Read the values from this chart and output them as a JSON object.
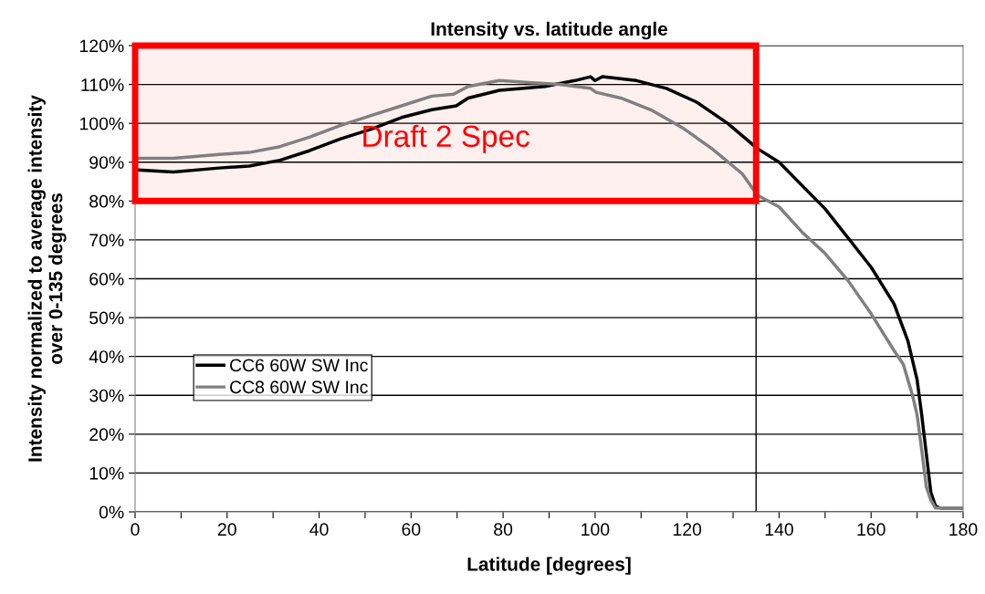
{
  "chart_data": {
    "type": "line",
    "title": "Intensity vs. latitude angle",
    "xlabel": "Latitude [degrees]",
    "ylabel": "Intensity normalized to average intensity\nover 0-135 degrees",
    "series": [
      {
        "name": "CC6 60W SW Inc",
        "color": "#000000",
        "x": [
          0.7,
          8.3,
          18.3,
          24.8,
          31.5,
          38,
          44.7,
          51.3,
          57.9,
          64.5,
          69.8,
          72.4,
          79.2,
          89.1,
          95.6,
          99,
          100,
          101.6,
          109,
          115.5,
          122,
          128.8,
          135.3,
          140,
          150,
          160,
          165,
          168,
          170,
          171,
          172,
          173,
          174,
          175,
          180
        ],
        "values": [
          88,
          87.5,
          88.5,
          89,
          90.5,
          93,
          96,
          98.5,
          101.5,
          103.5,
          104.5,
          106.5,
          108.5,
          109.5,
          111,
          112,
          111,
          112,
          111,
          109,
          105.5,
          100,
          93.5,
          90,
          78,
          63,
          53.5,
          44,
          34,
          25,
          15,
          5,
          1.5,
          1,
          1
        ]
      },
      {
        "name": "CC8 60W SW Inc",
        "color": "#808080",
        "x": [
          0.7,
          8.3,
          18.3,
          24.8,
          31.5,
          38,
          44.7,
          51.3,
          57.9,
          64.5,
          69.2,
          72.4,
          79.2,
          85.7,
          92.3,
          99,
          100.2,
          105.6,
          112.1,
          118.8,
          125.4,
          132,
          135.3,
          140,
          145,
          150,
          155,
          160,
          165,
          167,
          169,
          170,
          171,
          172,
          173,
          174,
          180
        ],
        "values": [
          91,
          91,
          92,
          92.5,
          94,
          96.5,
          99.5,
          102,
          104.5,
          107,
          107.5,
          109.5,
          111,
          110.5,
          110,
          109,
          108,
          106.5,
          103.5,
          99,
          93.5,
          87,
          81.5,
          78.5,
          72,
          66.5,
          59.5,
          51,
          41.5,
          38,
          30,
          25,
          16,
          6.5,
          3,
          1,
          1
        ]
      }
    ],
    "xlim": [
      0,
      180
    ],
    "xticks": [
      0,
      {
        "value": 10,
        "label": null
      },
      20,
      {
        "value": 30,
        "label": null
      },
      40,
      {
        "value": 50,
        "label": null
      },
      60,
      {
        "value": 70,
        "label": null
      },
      80,
      {
        "value": 90,
        "label": null
      },
      100,
      {
        "value": 110,
        "label": null
      },
      120,
      {
        "value": 130,
        "label": null
      },
      140,
      {
        "value": 150,
        "label": null
      },
      160,
      {
        "value": 170,
        "label": null
      },
      180
    ],
    "ylim": [
      0,
      120
    ],
    "yticks": [
      {
        "value": 0,
        "label": "0%"
      },
      {
        "value": 10,
        "label": "10%"
      },
      {
        "value": 20,
        "label": "20%"
      },
      {
        "value": 30,
        "label": "30%"
      },
      {
        "value": 40,
        "label": "40%"
      },
      {
        "value": 50,
        "label": "50%"
      },
      {
        "value": 60,
        "label": "60%"
      },
      {
        "value": 70,
        "label": "70%"
      },
      {
        "value": 80,
        "label": "80%"
      },
      {
        "value": 90,
        "label": "90%"
      },
      {
        "value": 100,
        "label": "100%"
      },
      {
        "value": 110,
        "label": "110%"
      },
      {
        "value": 120,
        "label": "120%"
      }
    ],
    "ref_lines": [
      {
        "axis": "x",
        "value": 135,
        "color": "#000000"
      }
    ],
    "bands": [
      {
        "axis": "y",
        "from": 80,
        "to": 120,
        "label": "Draft 2 Spec",
        "color": "#ff0000"
      }
    ],
    "grid": "y",
    "legend": "lower left",
    "line_style": "solid",
    "marker": "none"
  }
}
